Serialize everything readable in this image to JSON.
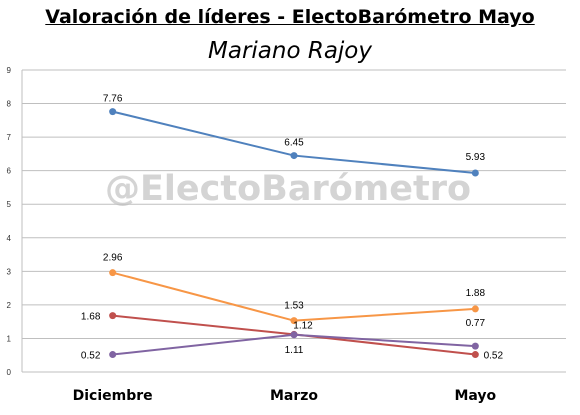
{
  "chart_data": {
    "type": "line",
    "title": "Valoración de líderes - ElectoBarómetro Mayo",
    "subtitle": "Mariano Rajoy",
    "watermark": "@ElectoBarómetro",
    "categories": [
      "Diciembre",
      "Marzo",
      "Mayo"
    ],
    "ylim": [
      0,
      9
    ],
    "yticks": [
      "0",
      "1",
      "2",
      "3",
      "4",
      "5",
      "6",
      "7",
      "8",
      "9"
    ],
    "grid": true,
    "legend": "none",
    "series": [
      {
        "color": "#4f81bd",
        "values": [
          7.76,
          6.45,
          5.93
        ],
        "labels": [
          "7.76",
          "6.45",
          "5.93"
        ]
      },
      {
        "color": "#f79646",
        "values": [
          2.96,
          1.53,
          1.88
        ],
        "labels": [
          "2.96",
          "1.53",
          "1.88"
        ]
      },
      {
        "color": "#c0504d",
        "values": [
          1.68,
          1.12,
          0.52
        ],
        "labels": [
          "1.68",
          "1.12",
          "0.52"
        ]
      },
      {
        "color": "#8064a2",
        "values": [
          0.52,
          1.11,
          0.77
        ],
        "labels": [
          "0.52",
          "1.11",
          "0.77"
        ]
      }
    ]
  }
}
